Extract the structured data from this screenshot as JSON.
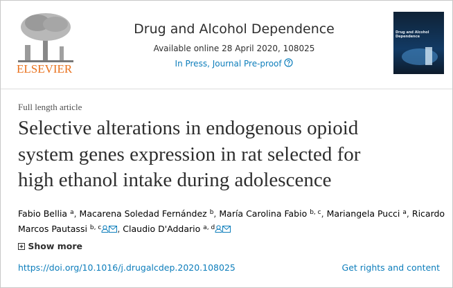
{
  "header": {
    "publisher": "ELSEVIER",
    "journal": "Drug and Alcohol Dependence",
    "available": "Available online 28 April 2020, 108025",
    "status": "In Press, Journal Pre-proof",
    "cover_title": "Drug and Alcohol Dependence"
  },
  "article": {
    "type": "Full length article",
    "title_lines": [
      "Selective alterations in endogenous opioid",
      "system genes expression in rat selected for",
      "high ethanol intake during adolescence"
    ],
    "authors": [
      {
        "name": "Fabio Bellia",
        "sup": "a"
      },
      {
        "name": "Macarena Soledad Fernández",
        "sup": "b"
      },
      {
        "name": "María Carolina Fabio",
        "sup": "b, c"
      },
      {
        "name": "Mariangela Pucci",
        "sup": "a"
      },
      {
        "name": "Ricardo Marcos Pautassi",
        "sup": "b, c"
      },
      {
        "name": "Claudio D'Addario",
        "sup": "a, d"
      }
    ],
    "show_more": "Show more",
    "doi": "https://doi.org/10.1016/j.drugalcdep.2020.108025",
    "rights": "Get rights and content"
  }
}
